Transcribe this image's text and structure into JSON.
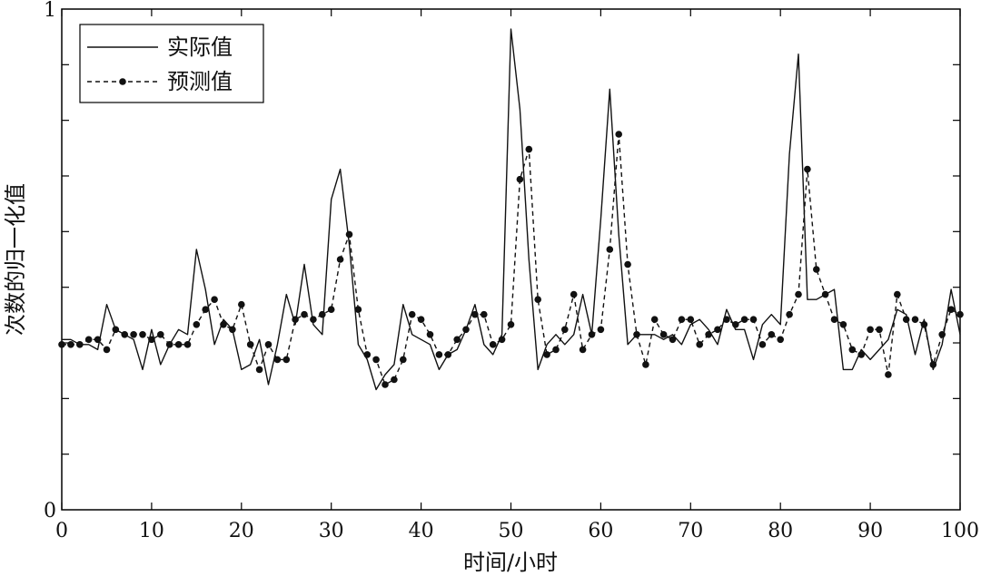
{
  "chart_data": {
    "type": "line",
    "title": "",
    "xlabel": "时间/小时",
    "ylabel": "次数的归一化值",
    "xlim": [
      0,
      100
    ],
    "ylim": [
      0,
      1
    ],
    "x_ticks": [
      0,
      10,
      20,
      30,
      40,
      50,
      60,
      70,
      80,
      90,
      100
    ],
    "y_tick_labels": [
      {
        "value": 0,
        "label": "0"
      },
      {
        "value": 1,
        "label": "1"
      }
    ],
    "y_minor_ticks": [
      0.1111,
      0.2222,
      0.3333,
      0.4444,
      0.5556,
      0.6667,
      0.7778,
      0.8889
    ],
    "grid": false,
    "legend_position": "top-left",
    "colors": {
      "line": "#111111",
      "axis": "#000000"
    },
    "series": [
      {
        "name": "实际值",
        "style": "solid",
        "x": [
          0,
          1,
          2,
          3,
          4,
          5,
          6,
          7,
          8,
          9,
          10,
          11,
          12,
          13,
          14,
          15,
          16,
          17,
          18,
          19,
          20,
          21,
          22,
          23,
          24,
          25,
          26,
          27,
          28,
          29,
          30,
          31,
          32,
          33,
          34,
          35,
          36,
          37,
          38,
          39,
          40,
          41,
          42,
          43,
          44,
          45,
          46,
          47,
          48,
          49,
          50,
          51,
          52,
          53,
          54,
          55,
          56,
          57,
          58,
          59,
          60,
          61,
          62,
          63,
          64,
          65,
          66,
          67,
          68,
          69,
          70,
          71,
          72,
          73,
          74,
          75,
          76,
          77,
          78,
          79,
          80,
          81,
          82,
          83,
          84,
          85,
          86,
          87,
          88,
          89,
          90,
          91,
          92,
          93,
          94,
          95,
          96,
          97,
          98,
          99,
          100
        ],
        "values": [
          0.34,
          0.34,
          0.33,
          0.33,
          0.32,
          0.41,
          0.36,
          0.35,
          0.34,
          0.28,
          0.36,
          0.29,
          0.33,
          0.36,
          0.35,
          0.52,
          0.44,
          0.33,
          0.38,
          0.36,
          0.28,
          0.29,
          0.34,
          0.25,
          0.33,
          0.43,
          0.37,
          0.49,
          0.37,
          0.35,
          0.62,
          0.68,
          0.53,
          0.33,
          0.3,
          0.24,
          0.27,
          0.29,
          0.41,
          0.35,
          0.34,
          0.33,
          0.28,
          0.31,
          0.32,
          0.36,
          0.41,
          0.33,
          0.31,
          0.35,
          0.96,
          0.8,
          0.5,
          0.28,
          0.33,
          0.35,
          0.33,
          0.35,
          0.43,
          0.35,
          0.58,
          0.84,
          0.55,
          0.33,
          0.35,
          0.35,
          0.35,
          0.34,
          0.35,
          0.33,
          0.37,
          0.38,
          0.36,
          0.33,
          0.4,
          0.36,
          0.36,
          0.3,
          0.37,
          0.39,
          0.37,
          0.71,
          0.91,
          0.42,
          0.42,
          0.43,
          0.44,
          0.28,
          0.28,
          0.32,
          0.3,
          0.32,
          0.34,
          0.4,
          0.39,
          0.31,
          0.38,
          0.28,
          0.33,
          0.44,
          0.35
        ]
      },
      {
        "name": "预测值",
        "style": "dashed-marker",
        "x": [
          0,
          1,
          2,
          3,
          4,
          5,
          6,
          7,
          8,
          9,
          10,
          11,
          12,
          13,
          14,
          15,
          16,
          17,
          18,
          19,
          20,
          21,
          22,
          23,
          24,
          25,
          26,
          27,
          28,
          29,
          30,
          31,
          32,
          33,
          34,
          35,
          36,
          37,
          38,
          39,
          40,
          41,
          42,
          43,
          44,
          45,
          46,
          47,
          48,
          49,
          50,
          51,
          52,
          53,
          54,
          55,
          56,
          57,
          58,
          59,
          60,
          61,
          62,
          63,
          64,
          65,
          66,
          67,
          68,
          69,
          70,
          71,
          72,
          73,
          74,
          75,
          76,
          77,
          78,
          79,
          80,
          81,
          82,
          83,
          84,
          85,
          86,
          87,
          88,
          89,
          90,
          91,
          92,
          93,
          94,
          95,
          96,
          97,
          98,
          99,
          100
        ],
        "values": [
          0.33,
          0.33,
          0.33,
          0.34,
          0.34,
          0.32,
          0.36,
          0.35,
          0.35,
          0.35,
          0.34,
          0.35,
          0.33,
          0.33,
          0.33,
          0.37,
          0.4,
          0.42,
          0.37,
          0.36,
          0.41,
          0.33,
          0.28,
          0.33,
          0.3,
          0.3,
          0.38,
          0.39,
          0.38,
          0.39,
          0.4,
          0.5,
          0.55,
          0.4,
          0.31,
          0.3,
          0.25,
          0.26,
          0.3,
          0.39,
          0.38,
          0.35,
          0.31,
          0.31,
          0.34,
          0.36,
          0.39,
          0.39,
          0.33,
          0.34,
          0.37,
          0.66,
          0.72,
          0.42,
          0.31,
          0.32,
          0.36,
          0.43,
          0.32,
          0.35,
          0.36,
          0.52,
          0.75,
          0.49,
          0.35,
          0.29,
          0.38,
          0.35,
          0.34,
          0.38,
          0.38,
          0.33,
          0.35,
          0.36,
          0.38,
          0.37,
          0.38,
          0.38,
          0.33,
          0.35,
          0.34,
          0.39,
          0.43,
          0.68,
          0.48,
          0.43,
          0.38,
          0.37,
          0.32,
          0.31,
          0.36,
          0.36,
          0.27,
          0.43,
          0.38,
          0.38,
          0.37,
          0.29,
          0.35,
          0.4,
          0.39
        ]
      }
    ]
  }
}
